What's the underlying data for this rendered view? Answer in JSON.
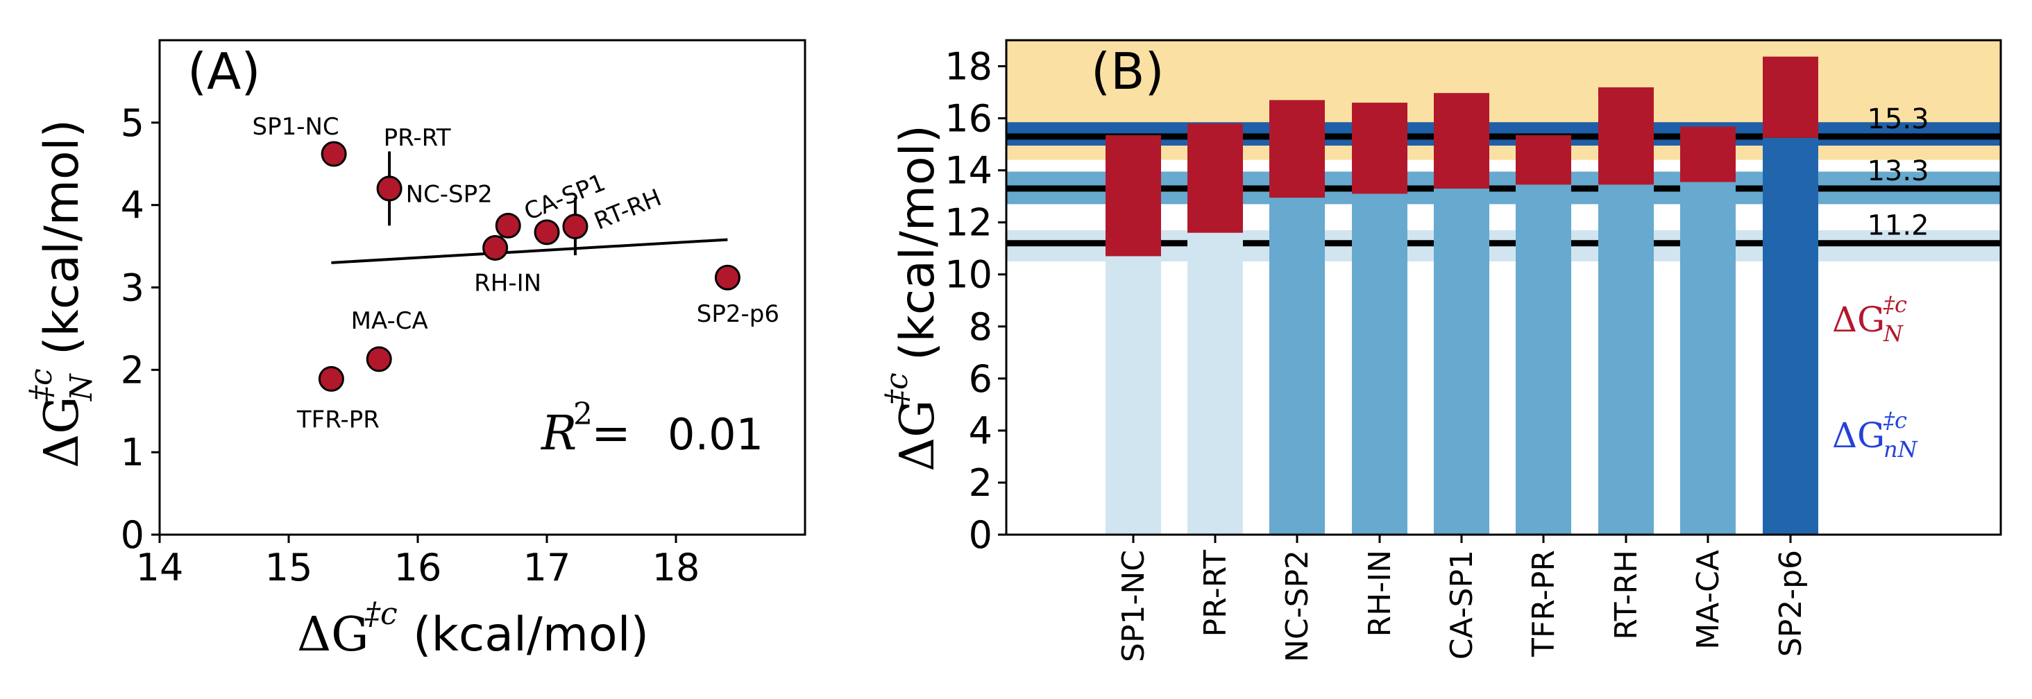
{
  "chart_data": [
    {
      "panel": "(A)",
      "type": "scatter",
      "xlabel": "ΔG‡c (kcal/mol)",
      "ylabel": "ΔG‡c_N (kcal/mol)",
      "xlim": [
        14,
        19
      ],
      "ylim": [
        0,
        6
      ],
      "xticks": [
        14,
        15,
        16,
        17,
        18
      ],
      "yticks": [
        0,
        1,
        2,
        3,
        4,
        5
      ],
      "points": [
        {
          "label": "SP1-NC",
          "x": 15.35,
          "y": 4.62,
          "err": 0
        },
        {
          "label": "PR-RT",
          "x": 15.78,
          "y": 4.2,
          "err": 0.45
        },
        {
          "label": "NC-SP2",
          "x": 16.7,
          "y": 3.75,
          "err": 0
        },
        {
          "label": "CA-SP1",
          "x": 17.0,
          "y": 3.67,
          "err": 0
        },
        {
          "label": "RT-RH",
          "x": 17.22,
          "y": 3.74,
          "err": 0.35
        },
        {
          "label": "RH-IN",
          "x": 16.6,
          "y": 3.48,
          "err": 0
        },
        {
          "label": "SP2-p6",
          "x": 18.4,
          "y": 3.12,
          "err": 0
        },
        {
          "label": "MA-CA",
          "x": 15.7,
          "y": 2.13,
          "err": 0
        },
        {
          "label": "TFR-PR",
          "x": 15.33,
          "y": 1.89,
          "err": 0
        }
      ],
      "fit_line": {
        "x": [
          15.33,
          18.4
        ],
        "y": [
          3.3,
          3.58
        ]
      },
      "annotation": {
        "lhs": "R",
        "sup": "2",
        "eq": " =",
        "value": "0.01"
      },
      "marker_color": "#b2182b"
    },
    {
      "panel": "(B)",
      "type": "bar",
      "stacked": true,
      "ylabel": "ΔG‡c (kcal/mol)",
      "ylim": [
        0,
        19
      ],
      "yticks": [
        0,
        2,
        4,
        6,
        8,
        10,
        12,
        14,
        16,
        18
      ],
      "categories": [
        "SP1-NC",
        "PR-RT",
        "NC-SP2",
        "RH-IN",
        "CA-SP1",
        "TFR-PR",
        "RT-RH",
        "MA-CA",
        "SP2-p6"
      ],
      "series": [
        {
          "name": "ΔG‡c_nN",
          "values": [
            10.7,
            11.6,
            12.95,
            13.1,
            13.3,
            13.45,
            13.45,
            13.55,
            15.25
          ],
          "colors": [
            "#d1e5f0",
            "#d1e5f0",
            "#67a9cf",
            "#67a9cf",
            "#67a9cf",
            "#67a9cf",
            "#67a9cf",
            "#67a9cf",
            "#2166ac"
          ]
        },
        {
          "name": "ΔG‡c_N",
          "values": [
            4.65,
            4.2,
            3.75,
            3.5,
            3.67,
            1.9,
            3.74,
            2.13,
            3.12
          ],
          "color": "#b2182b"
        }
      ],
      "bands": [
        {
          "from": 15.7,
          "to": 19.0,
          "color": "#fbe0a3"
        },
        {
          "from": 14.4,
          "to": 15.05,
          "color": "#fbe0a3"
        },
        {
          "from": 14.95,
          "to": 15.85,
          "color": "#1f5fa8"
        },
        {
          "from": 12.7,
          "to": 13.95,
          "color": "#67a9cf"
        },
        {
          "from": 10.5,
          "to": 11.7,
          "color": "#d1e5f0"
        }
      ],
      "thresholds": [
        {
          "value": 15.3,
          "label": "15.3"
        },
        {
          "value": 13.3,
          "label": "13.3"
        },
        {
          "value": 11.2,
          "label": "11.2"
        }
      ],
      "legend": [
        {
          "lhs": "ΔG",
          "sup": "‡c",
          "sub": "N",
          "color": "#b2182b"
        },
        {
          "lhs": "ΔG",
          "sup": "‡c",
          "sub": "nN",
          "color": "#2442d8"
        }
      ]
    }
  ],
  "labels": {
    "panelA_x_lhs": "ΔG",
    "panelA_x_sup": "‡c",
    "panelA_x_unit": " (kcal/mol)",
    "panelA_y_lhs": "ΔG",
    "panelA_y_sup": "‡c",
    "panelA_y_sub": "N",
    "panelA_y_unit": " (kcal/mol)",
    "panelB_y_lhs": "ΔG",
    "panelB_y_sup": "‡c",
    "panelB_y_unit": " (kcal/mol)"
  }
}
